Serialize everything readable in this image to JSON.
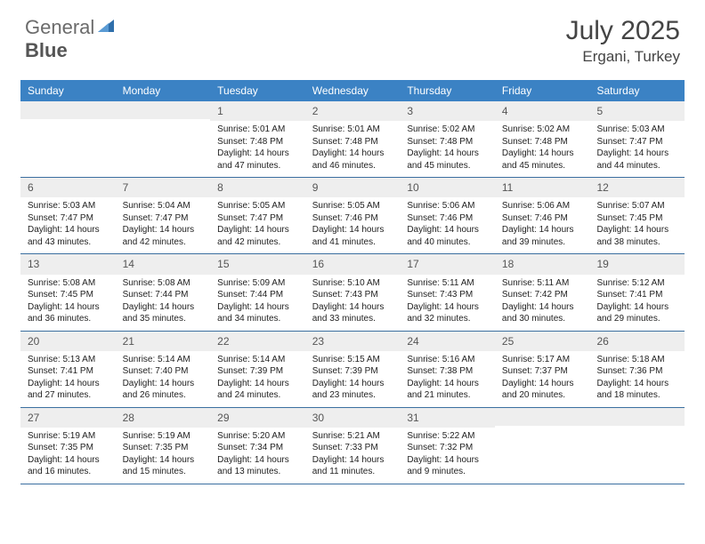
{
  "brand": {
    "part1": "General",
    "part2": "Blue"
  },
  "title": "July 2025",
  "location": "Ergani, Turkey",
  "colors": {
    "header_bg": "#3b82c4",
    "header_text": "#ffffff",
    "daynum_bg": "#eeeeee",
    "border": "#3b6fa0",
    "text": "#222222",
    "title_text": "#444444"
  },
  "dayNames": [
    "Sunday",
    "Monday",
    "Tuesday",
    "Wednesday",
    "Thursday",
    "Friday",
    "Saturday"
  ],
  "weeks": [
    [
      null,
      null,
      {
        "n": "1",
        "sr": "Sunrise: 5:01 AM",
        "ss": "Sunset: 7:48 PM",
        "dl": "Daylight: 14 hours and 47 minutes."
      },
      {
        "n": "2",
        "sr": "Sunrise: 5:01 AM",
        "ss": "Sunset: 7:48 PM",
        "dl": "Daylight: 14 hours and 46 minutes."
      },
      {
        "n": "3",
        "sr": "Sunrise: 5:02 AM",
        "ss": "Sunset: 7:48 PM",
        "dl": "Daylight: 14 hours and 45 minutes."
      },
      {
        "n": "4",
        "sr": "Sunrise: 5:02 AM",
        "ss": "Sunset: 7:48 PM",
        "dl": "Daylight: 14 hours and 45 minutes."
      },
      {
        "n": "5",
        "sr": "Sunrise: 5:03 AM",
        "ss": "Sunset: 7:47 PM",
        "dl": "Daylight: 14 hours and 44 minutes."
      }
    ],
    [
      {
        "n": "6",
        "sr": "Sunrise: 5:03 AM",
        "ss": "Sunset: 7:47 PM",
        "dl": "Daylight: 14 hours and 43 minutes."
      },
      {
        "n": "7",
        "sr": "Sunrise: 5:04 AM",
        "ss": "Sunset: 7:47 PM",
        "dl": "Daylight: 14 hours and 42 minutes."
      },
      {
        "n": "8",
        "sr": "Sunrise: 5:05 AM",
        "ss": "Sunset: 7:47 PM",
        "dl": "Daylight: 14 hours and 42 minutes."
      },
      {
        "n": "9",
        "sr": "Sunrise: 5:05 AM",
        "ss": "Sunset: 7:46 PM",
        "dl": "Daylight: 14 hours and 41 minutes."
      },
      {
        "n": "10",
        "sr": "Sunrise: 5:06 AM",
        "ss": "Sunset: 7:46 PM",
        "dl": "Daylight: 14 hours and 40 minutes."
      },
      {
        "n": "11",
        "sr": "Sunrise: 5:06 AM",
        "ss": "Sunset: 7:46 PM",
        "dl": "Daylight: 14 hours and 39 minutes."
      },
      {
        "n": "12",
        "sr": "Sunrise: 5:07 AM",
        "ss": "Sunset: 7:45 PM",
        "dl": "Daylight: 14 hours and 38 minutes."
      }
    ],
    [
      {
        "n": "13",
        "sr": "Sunrise: 5:08 AM",
        "ss": "Sunset: 7:45 PM",
        "dl": "Daylight: 14 hours and 36 minutes."
      },
      {
        "n": "14",
        "sr": "Sunrise: 5:08 AM",
        "ss": "Sunset: 7:44 PM",
        "dl": "Daylight: 14 hours and 35 minutes."
      },
      {
        "n": "15",
        "sr": "Sunrise: 5:09 AM",
        "ss": "Sunset: 7:44 PM",
        "dl": "Daylight: 14 hours and 34 minutes."
      },
      {
        "n": "16",
        "sr": "Sunrise: 5:10 AM",
        "ss": "Sunset: 7:43 PM",
        "dl": "Daylight: 14 hours and 33 minutes."
      },
      {
        "n": "17",
        "sr": "Sunrise: 5:11 AM",
        "ss": "Sunset: 7:43 PM",
        "dl": "Daylight: 14 hours and 32 minutes."
      },
      {
        "n": "18",
        "sr": "Sunrise: 5:11 AM",
        "ss": "Sunset: 7:42 PM",
        "dl": "Daylight: 14 hours and 30 minutes."
      },
      {
        "n": "19",
        "sr": "Sunrise: 5:12 AM",
        "ss": "Sunset: 7:41 PM",
        "dl": "Daylight: 14 hours and 29 minutes."
      }
    ],
    [
      {
        "n": "20",
        "sr": "Sunrise: 5:13 AM",
        "ss": "Sunset: 7:41 PM",
        "dl": "Daylight: 14 hours and 27 minutes."
      },
      {
        "n": "21",
        "sr": "Sunrise: 5:14 AM",
        "ss": "Sunset: 7:40 PM",
        "dl": "Daylight: 14 hours and 26 minutes."
      },
      {
        "n": "22",
        "sr": "Sunrise: 5:14 AM",
        "ss": "Sunset: 7:39 PM",
        "dl": "Daylight: 14 hours and 24 minutes."
      },
      {
        "n": "23",
        "sr": "Sunrise: 5:15 AM",
        "ss": "Sunset: 7:39 PM",
        "dl": "Daylight: 14 hours and 23 minutes."
      },
      {
        "n": "24",
        "sr": "Sunrise: 5:16 AM",
        "ss": "Sunset: 7:38 PM",
        "dl": "Daylight: 14 hours and 21 minutes."
      },
      {
        "n": "25",
        "sr": "Sunrise: 5:17 AM",
        "ss": "Sunset: 7:37 PM",
        "dl": "Daylight: 14 hours and 20 minutes."
      },
      {
        "n": "26",
        "sr": "Sunrise: 5:18 AM",
        "ss": "Sunset: 7:36 PM",
        "dl": "Daylight: 14 hours and 18 minutes."
      }
    ],
    [
      {
        "n": "27",
        "sr": "Sunrise: 5:19 AM",
        "ss": "Sunset: 7:35 PM",
        "dl": "Daylight: 14 hours and 16 minutes."
      },
      {
        "n": "28",
        "sr": "Sunrise: 5:19 AM",
        "ss": "Sunset: 7:35 PM",
        "dl": "Daylight: 14 hours and 15 minutes."
      },
      {
        "n": "29",
        "sr": "Sunrise: 5:20 AM",
        "ss": "Sunset: 7:34 PM",
        "dl": "Daylight: 14 hours and 13 minutes."
      },
      {
        "n": "30",
        "sr": "Sunrise: 5:21 AM",
        "ss": "Sunset: 7:33 PM",
        "dl": "Daylight: 14 hours and 11 minutes."
      },
      {
        "n": "31",
        "sr": "Sunrise: 5:22 AM",
        "ss": "Sunset: 7:32 PM",
        "dl": "Daylight: 14 hours and 9 minutes."
      },
      null,
      null
    ]
  ]
}
